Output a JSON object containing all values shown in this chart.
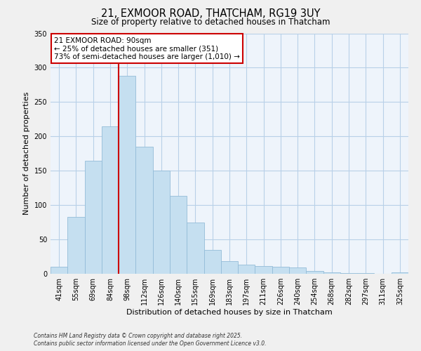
{
  "title_line1": "21, EXMOOR ROAD, THATCHAM, RG19 3UY",
  "title_line2": "Size of property relative to detached houses in Thatcham",
  "xlabel": "Distribution of detached houses by size in Thatcham",
  "ylabel": "Number of detached properties",
  "bar_labels": [
    "41sqm",
    "55sqm",
    "69sqm",
    "84sqm",
    "98sqm",
    "112sqm",
    "126sqm",
    "140sqm",
    "155sqm",
    "169sqm",
    "183sqm",
    "197sqm",
    "211sqm",
    "226sqm",
    "240sqm",
    "254sqm",
    "268sqm",
    "282sqm",
    "297sqm",
    "311sqm",
    "325sqm"
  ],
  "bar_heights": [
    10,
    83,
    165,
    215,
    288,
    185,
    150,
    113,
    75,
    35,
    18,
    13,
    11,
    10,
    9,
    4,
    2,
    1,
    1,
    0,
    2
  ],
  "bar_color": "#c5dff0",
  "bar_edge_color": "#94bcd8",
  "vline_color": "#cc0000",
  "ylim": [
    0,
    350
  ],
  "yticks": [
    0,
    50,
    100,
    150,
    200,
    250,
    300,
    350
  ],
  "annotation_title": "21 EXMOOR ROAD: 90sqm",
  "annotation_line1": "← 25% of detached houses are smaller (351)",
  "annotation_line2": "73% of semi-detached houses are larger (1,010) →",
  "footer_line1": "Contains HM Land Registry data © Crown copyright and database right 2025.",
  "footer_line2": "Contains public sector information licensed under the Open Government Licence v3.0.",
  "background_color": "#f0f0f0",
  "plot_bg_color": "#eef4fb",
  "grid_color": "#b8d0e8",
  "box_edge_color": "#cc0000",
  "title1_fontsize": 10.5,
  "title2_fontsize": 8.5,
  "xlabel_fontsize": 8.0,
  "ylabel_fontsize": 8.0,
  "tick_fontsize": 7.0,
  "annot_fontsize": 7.5
}
